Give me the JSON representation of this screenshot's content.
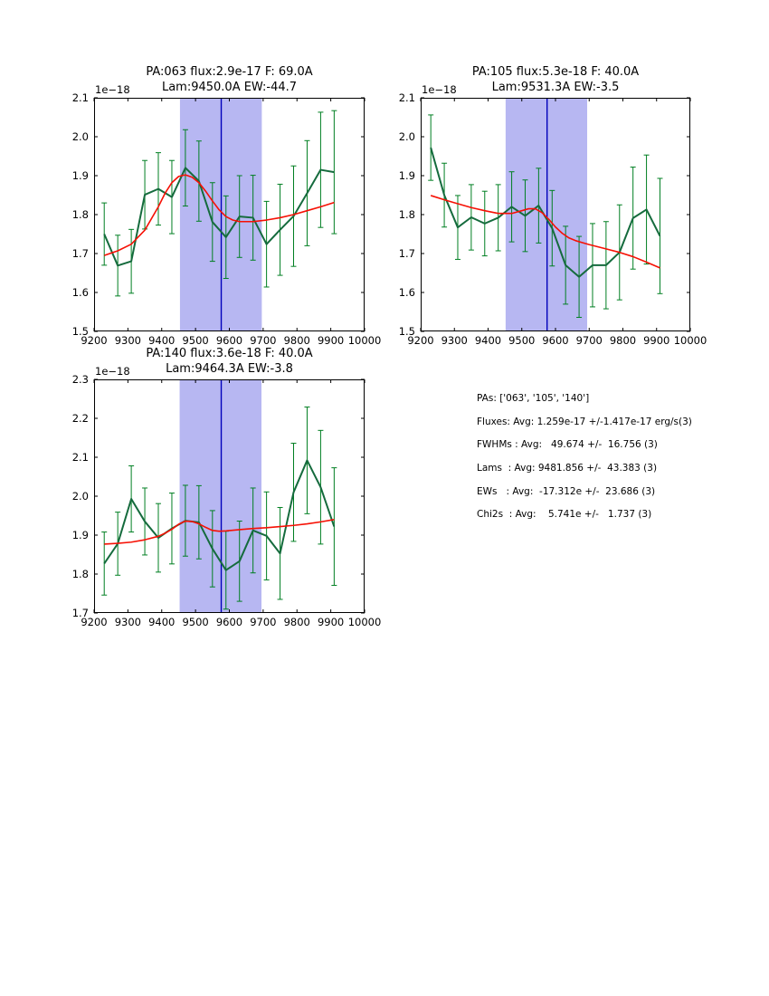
{
  "colors": {
    "data_line": "#156b3d",
    "error_bar": "#007f22",
    "fit_line": "#f61004",
    "shade": "#b7b7f2",
    "vline": "#0000bb",
    "frame": "#000000",
    "text": "#000000"
  },
  "chart_data": [
    {
      "type": "line",
      "title_line1": "PA:063 flux:2.9e-17 F: 69.0A",
      "title_line2": "Lam:9450.0A EW:-44.7",
      "offset_label": "1e−18",
      "xlim": [
        9200,
        10000
      ],
      "ylim": [
        1.5,
        2.1
      ],
      "xticks": [
        "9200",
        "9300",
        "9400",
        "9500",
        "9600",
        "9700",
        "9800",
        "9900",
        "10000"
      ],
      "yticks": [
        "1.5",
        "1.6",
        "1.7",
        "1.8",
        "1.9",
        "2.0",
        "2.1"
      ],
      "shade_span": [
        9454,
        9696
      ],
      "vline_x": 9576,
      "grid": false,
      "legend": "none",
      "series": [
        {
          "name": "spectrum",
          "x": [
            9230,
            9270,
            9310,
            9350,
            9390,
            9430,
            9470,
            9510,
            9550,
            9590,
            9630,
            9670,
            9710,
            9750,
            9790,
            9830,
            9870,
            9910
          ],
          "y": [
            1.75,
            1.669,
            1.68,
            1.851,
            1.866,
            1.845,
            1.92,
            1.886,
            1.781,
            1.742,
            1.795,
            1.792,
            1.724,
            1.761,
            1.796,
            1.855,
            1.915,
            1.909
          ],
          "yerr": [
            0.08,
            0.078,
            0.082,
            0.088,
            0.093,
            0.094,
            0.098,
            0.103,
            0.101,
            0.106,
            0.105,
            0.109,
            0.11,
            0.117,
            0.129,
            0.135,
            0.148,
            0.158
          ]
        },
        {
          "name": "gaussian-fit",
          "x": [
            9230,
            9270,
            9310,
            9350,
            9390,
            9410,
            9430,
            9450,
            9470,
            9490,
            9510,
            9530,
            9550,
            9570,
            9590,
            9610,
            9630,
            9670,
            9710,
            9750,
            9790,
            9830,
            9870,
            9910
          ],
          "y": [
            1.695,
            1.707,
            1.724,
            1.76,
            1.82,
            1.855,
            1.882,
            1.898,
            1.902,
            1.896,
            1.882,
            1.86,
            1.835,
            1.812,
            1.795,
            1.786,
            1.782,
            1.782,
            1.786,
            1.792,
            1.8,
            1.81,
            1.82,
            1.831
          ]
        }
      ]
    },
    {
      "type": "line",
      "title_line1": "PA:105 flux:5.3e-18 F: 40.0A",
      "title_line2": "Lam:9531.3A EW:-3.5",
      "offset_label": "1e−18",
      "xlim": [
        9200,
        10000
      ],
      "ylim": [
        1.5,
        2.1
      ],
      "xticks": [
        "9200",
        "9300",
        "9400",
        "9500",
        "9600",
        "9700",
        "9800",
        "9900",
        "10000"
      ],
      "yticks": [
        "1.5",
        "1.6",
        "1.7",
        "1.8",
        "1.9",
        "2.0",
        "2.1"
      ],
      "shade_span": [
        9452,
        9694
      ],
      "vline_x": 9575,
      "grid": false,
      "legend": "none",
      "series": [
        {
          "name": "spectrum",
          "x": [
            9230,
            9270,
            9310,
            9350,
            9390,
            9430,
            9470,
            9510,
            9550,
            9590,
            9630,
            9670,
            9710,
            9750,
            9790,
            9830,
            9870,
            9910
          ],
          "y": [
            1.972,
            1.85,
            1.767,
            1.793,
            1.777,
            1.792,
            1.82,
            1.797,
            1.823,
            1.765,
            1.67,
            1.64,
            1.67,
            1.67,
            1.703,
            1.791,
            1.813,
            1.745
          ],
          "yerr": [
            0.084,
            0.082,
            0.082,
            0.084,
            0.083,
            0.085,
            0.09,
            0.092,
            0.096,
            0.097,
            0.1,
            0.104,
            0.107,
            0.112,
            0.122,
            0.131,
            0.14,
            0.148
          ]
        },
        {
          "name": "gaussian-fit",
          "x": [
            9230,
            9270,
            9310,
            9350,
            9390,
            9430,
            9470,
            9500,
            9520,
            9540,
            9560,
            9580,
            9600,
            9620,
            9640,
            9660,
            9680,
            9700,
            9750,
            9790,
            9830,
            9870,
            9910
          ],
          "y": [
            1.849,
            1.838,
            1.828,
            1.818,
            1.81,
            1.803,
            1.803,
            1.81,
            1.815,
            1.815,
            1.805,
            1.788,
            1.768,
            1.752,
            1.74,
            1.733,
            1.728,
            1.723,
            1.712,
            1.703,
            1.692,
            1.678,
            1.663
          ]
        }
      ]
    },
    {
      "type": "line",
      "title_line1": "PA:140 flux:3.6e-18 F: 40.0A",
      "title_line2": "Lam:9464.3A EW:-3.8",
      "offset_label": "1e−18",
      "xlim": [
        9200,
        10000
      ],
      "ylim": [
        1.7,
        2.3
      ],
      "xticks": [
        "9200",
        "9300",
        "9400",
        "9500",
        "9600",
        "9700",
        "9800",
        "9900",
        "10000"
      ],
      "yticks": [
        "1.7",
        "1.8",
        "1.9",
        "2.0",
        "2.1",
        "2.2",
        "2.3"
      ],
      "shade_span": [
        9453,
        9695
      ],
      "vline_x": 9576,
      "grid": false,
      "legend": "none",
      "series": [
        {
          "name": "spectrum",
          "x": [
            9230,
            9270,
            9310,
            9350,
            9390,
            9430,
            9470,
            9510,
            9550,
            9590,
            9630,
            9670,
            9710,
            9750,
            9790,
            9830,
            9870,
            9910
          ],
          "y": [
            1.827,
            1.878,
            1.993,
            1.935,
            1.893,
            1.917,
            1.937,
            1.933,
            1.865,
            1.81,
            1.833,
            1.912,
            1.898,
            1.853,
            2.01,
            2.092,
            2.023,
            1.922
          ],
          "yerr": [
            0.081,
            0.081,
            0.085,
            0.086,
            0.088,
            0.091,
            0.091,
            0.094,
            0.098,
            0.1,
            0.103,
            0.109,
            0.113,
            0.118,
            0.126,
            0.137,
            0.146,
            0.151
          ]
        },
        {
          "name": "gaussian-fit",
          "x": [
            9230,
            9270,
            9310,
            9350,
            9390,
            9410,
            9430,
            9450,
            9470,
            9490,
            9510,
            9530,
            9550,
            9570,
            9590,
            9630,
            9670,
            9710,
            9750,
            9790,
            9830,
            9870,
            9910
          ],
          "y": [
            1.877,
            1.879,
            1.882,
            1.888,
            1.897,
            1.905,
            1.915,
            1.928,
            1.936,
            1.935,
            1.929,
            1.92,
            1.912,
            1.91,
            1.911,
            1.914,
            1.917,
            1.919,
            1.922,
            1.925,
            1.929,
            1.934,
            1.94
          ]
        }
      ]
    }
  ],
  "stats_panel": {
    "lines": [
      "PAs: ['063', '105', '140']",
      "Fluxes: Avg: 1.259e-17 +/-1.417e-17 erg/s(3)",
      "FWHMs : Avg:   49.674 +/-  16.756 (3)",
      "Lams  : Avg: 9481.856 +/-  43.383 (3)",
      "EWs   : Avg:  -17.312e +/-  23.686 (3)",
      "Chi2s  : Avg:    5.741e +/-   1.737 (3)"
    ]
  }
}
